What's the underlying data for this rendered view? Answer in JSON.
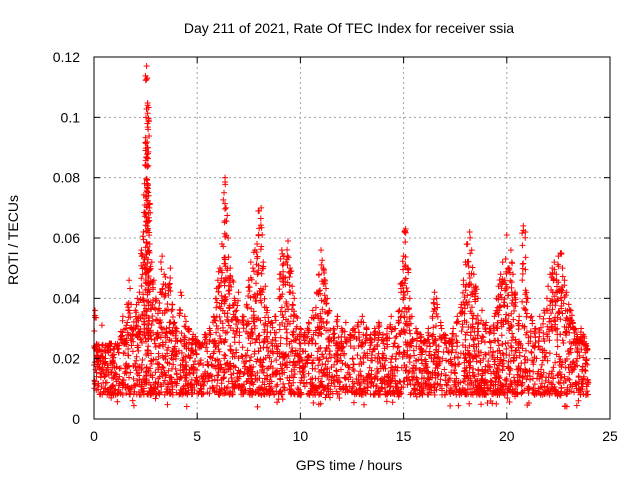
{
  "chart_data": {
    "type": "scatter",
    "title": "Day 211 of 2021, Rate Of TEC Index for receiver ssia",
    "xlabel": "GPS time / hours",
    "ylabel": "ROTI / TECUs",
    "xlim": [
      0,
      25
    ],
    "ylim": [
      0,
      0.12
    ],
    "xticks": [
      0,
      5,
      10,
      15,
      20,
      25
    ],
    "xtick_labels": [
      "0",
      "5",
      "10",
      "15",
      "20",
      "25"
    ],
    "yticks": [
      0,
      0.02,
      0.04,
      0.06,
      0.08,
      0.1,
      0.12
    ],
    "ytick_labels": [
      "0",
      "0.02",
      "0.04",
      "0.06",
      "0.08",
      "0.1",
      "0.12"
    ],
    "grid": true,
    "marker": "+",
    "color": "#ff0000",
    "data_x_range": [
      0,
      23.98
    ],
    "baseline_band": [
      0.008,
      0.025
    ],
    "series": [
      {
        "name": "ROTI",
        "points": [
          [
            0.05,
            0.036
          ],
          [
            0.1,
            0.024
          ],
          [
            0.15,
            0.021
          ],
          [
            0.2,
            0.018
          ],
          [
            0.3,
            0.015
          ],
          [
            0.4,
            0.017
          ],
          [
            0.5,
            0.014
          ],
          [
            0.6,
            0.016
          ],
          [
            0.7,
            0.022
          ],
          [
            0.8,
            0.025
          ],
          [
            0.9,
            0.019
          ],
          [
            1.0,
            0.017
          ],
          [
            1.1,
            0.024
          ],
          [
            1.2,
            0.022
          ],
          [
            1.3,
            0.029
          ],
          [
            1.4,
            0.034
          ],
          [
            1.5,
            0.026
          ],
          [
            1.6,
            0.038
          ],
          [
            1.7,
            0.046
          ],
          [
            1.8,
            0.038
          ],
          [
            1.9,
            0.03
          ],
          [
            2.0,
            0.036
          ],
          [
            2.1,
            0.04
          ],
          [
            2.2,
            0.042
          ],
          [
            2.3,
            0.056
          ],
          [
            2.4,
            0.062
          ],
          [
            2.45,
            0.078
          ],
          [
            2.5,
            0.089
          ],
          [
            2.52,
            0.1
          ],
          [
            2.55,
            0.117
          ],
          [
            2.58,
            0.113
          ],
          [
            2.6,
            0.104
          ],
          [
            2.62,
            0.096
          ],
          [
            2.65,
            0.074
          ],
          [
            2.68,
            0.07
          ],
          [
            2.7,
            0.058
          ],
          [
            2.8,
            0.052
          ],
          [
            2.9,
            0.046
          ],
          [
            3.0,
            0.04
          ],
          [
            3.1,
            0.035
          ],
          [
            3.2,
            0.042
          ],
          [
            3.3,
            0.054
          ],
          [
            3.4,
            0.048
          ],
          [
            3.5,
            0.036
          ],
          [
            3.6,
            0.044
          ],
          [
            3.7,
            0.05
          ],
          [
            3.8,
            0.038
          ],
          [
            3.9,
            0.032
          ],
          [
            4.0,
            0.03
          ],
          [
            4.2,
            0.042
          ],
          [
            4.4,
            0.034
          ],
          [
            4.6,
            0.03
          ],
          [
            4.8,
            0.028
          ],
          [
            5.0,
            0.026
          ],
          [
            5.2,
            0.024
          ],
          [
            5.4,
            0.028
          ],
          [
            5.6,
            0.03
          ],
          [
            5.8,
            0.034
          ],
          [
            5.9,
            0.04
          ],
          [
            6.0,
            0.046
          ],
          [
            6.1,
            0.05
          ],
          [
            6.2,
            0.058
          ],
          [
            6.3,
            0.075
          ],
          [
            6.35,
            0.08
          ],
          [
            6.4,
            0.07
          ],
          [
            6.5,
            0.06
          ],
          [
            6.6,
            0.05
          ],
          [
            6.7,
            0.046
          ],
          [
            6.8,
            0.04
          ],
          [
            6.9,
            0.036
          ],
          [
            7.0,
            0.042
          ],
          [
            7.2,
            0.034
          ],
          [
            7.4,
            0.038
          ],
          [
            7.5,
            0.046
          ],
          [
            7.6,
            0.052
          ],
          [
            7.7,
            0.05
          ],
          [
            7.8,
            0.056
          ],
          [
            7.9,
            0.058
          ],
          [
            8.0,
            0.069
          ],
          [
            8.1,
            0.07
          ],
          [
            8.2,
            0.052
          ],
          [
            8.3,
            0.044
          ],
          [
            8.4,
            0.036
          ],
          [
            8.6,
            0.032
          ],
          [
            8.8,
            0.034
          ],
          [
            9.0,
            0.048
          ],
          [
            9.1,
            0.056
          ],
          [
            9.2,
            0.054
          ],
          [
            9.3,
            0.052
          ],
          [
            9.4,
            0.059
          ],
          [
            9.5,
            0.05
          ],
          [
            9.6,
            0.044
          ],
          [
            9.7,
            0.04
          ],
          [
            9.8,
            0.034
          ],
          [
            10.0,
            0.03
          ],
          [
            10.2,
            0.028
          ],
          [
            10.4,
            0.032
          ],
          [
            10.6,
            0.036
          ],
          [
            10.8,
            0.042
          ],
          [
            10.9,
            0.048
          ],
          [
            11.0,
            0.056
          ],
          [
            11.1,
            0.05
          ],
          [
            11.2,
            0.046
          ],
          [
            11.3,
            0.04
          ],
          [
            11.4,
            0.036
          ],
          [
            11.6,
            0.03
          ],
          [
            11.8,
            0.034
          ],
          [
            12.0,
            0.03
          ],
          [
            12.2,
            0.032
          ],
          [
            12.4,
            0.028
          ],
          [
            12.6,
            0.03
          ],
          [
            12.8,
            0.032
          ],
          [
            13.0,
            0.034
          ],
          [
            13.2,
            0.03
          ],
          [
            13.4,
            0.028
          ],
          [
            13.6,
            0.03
          ],
          [
            13.8,
            0.032
          ],
          [
            14.0,
            0.028
          ],
          [
            14.2,
            0.03
          ],
          [
            14.4,
            0.034
          ],
          [
            14.6,
            0.03
          ],
          [
            14.8,
            0.036
          ],
          [
            14.9,
            0.045
          ],
          [
            15.0,
            0.054
          ],
          [
            15.05,
            0.062
          ],
          [
            15.1,
            0.063
          ],
          [
            15.2,
            0.05
          ],
          [
            15.3,
            0.04
          ],
          [
            15.4,
            0.034
          ],
          [
            15.6,
            0.03
          ],
          [
            15.8,
            0.028
          ],
          [
            16.0,
            0.026
          ],
          [
            16.2,
            0.03
          ],
          [
            16.4,
            0.034
          ],
          [
            16.5,
            0.042
          ],
          [
            16.6,
            0.04
          ],
          [
            16.8,
            0.032
          ],
          [
            17.0,
            0.028
          ],
          [
            17.2,
            0.026
          ],
          [
            17.4,
            0.03
          ],
          [
            17.6,
            0.034
          ],
          [
            17.8,
            0.038
          ],
          [
            17.9,
            0.046
          ],
          [
            18.0,
            0.052
          ],
          [
            18.1,
            0.058
          ],
          [
            18.2,
            0.062
          ],
          [
            18.3,
            0.056
          ],
          [
            18.4,
            0.048
          ],
          [
            18.5,
            0.044
          ],
          [
            18.6,
            0.04
          ],
          [
            18.8,
            0.036
          ],
          [
            19.0,
            0.032
          ],
          [
            19.2,
            0.03
          ],
          [
            19.4,
            0.034
          ],
          [
            19.5,
            0.04
          ],
          [
            19.6,
            0.044
          ],
          [
            19.7,
            0.048
          ],
          [
            19.8,
            0.052
          ],
          [
            19.9,
            0.046
          ],
          [
            20.0,
            0.061
          ],
          [
            20.1,
            0.05
          ],
          [
            20.2,
            0.056
          ],
          [
            20.3,
            0.048
          ],
          [
            20.4,
            0.042
          ],
          [
            20.6,
            0.034
          ],
          [
            20.8,
            0.064
          ],
          [
            20.9,
            0.062
          ],
          [
            21.0,
            0.04
          ],
          [
            21.2,
            0.034
          ],
          [
            21.4,
            0.03
          ],
          [
            21.6,
            0.034
          ],
          [
            21.8,
            0.036
          ],
          [
            22.0,
            0.044
          ],
          [
            22.1,
            0.048
          ],
          [
            22.2,
            0.05
          ],
          [
            22.3,
            0.052
          ],
          [
            22.4,
            0.048
          ],
          [
            22.5,
            0.054
          ],
          [
            22.6,
            0.055
          ],
          [
            22.7,
            0.05
          ],
          [
            22.8,
            0.046
          ],
          [
            22.9,
            0.042
          ],
          [
            23.0,
            0.038
          ],
          [
            23.1,
            0.036
          ],
          [
            23.2,
            0.032
          ],
          [
            23.3,
            0.03
          ],
          [
            23.4,
            0.028
          ],
          [
            23.5,
            0.026
          ],
          [
            23.6,
            0.03
          ],
          [
            23.7,
            0.028
          ],
          [
            23.8,
            0.022
          ],
          [
            23.9,
            0.018
          ],
          [
            23.95,
            0.012
          ]
        ]
      }
    ]
  }
}
